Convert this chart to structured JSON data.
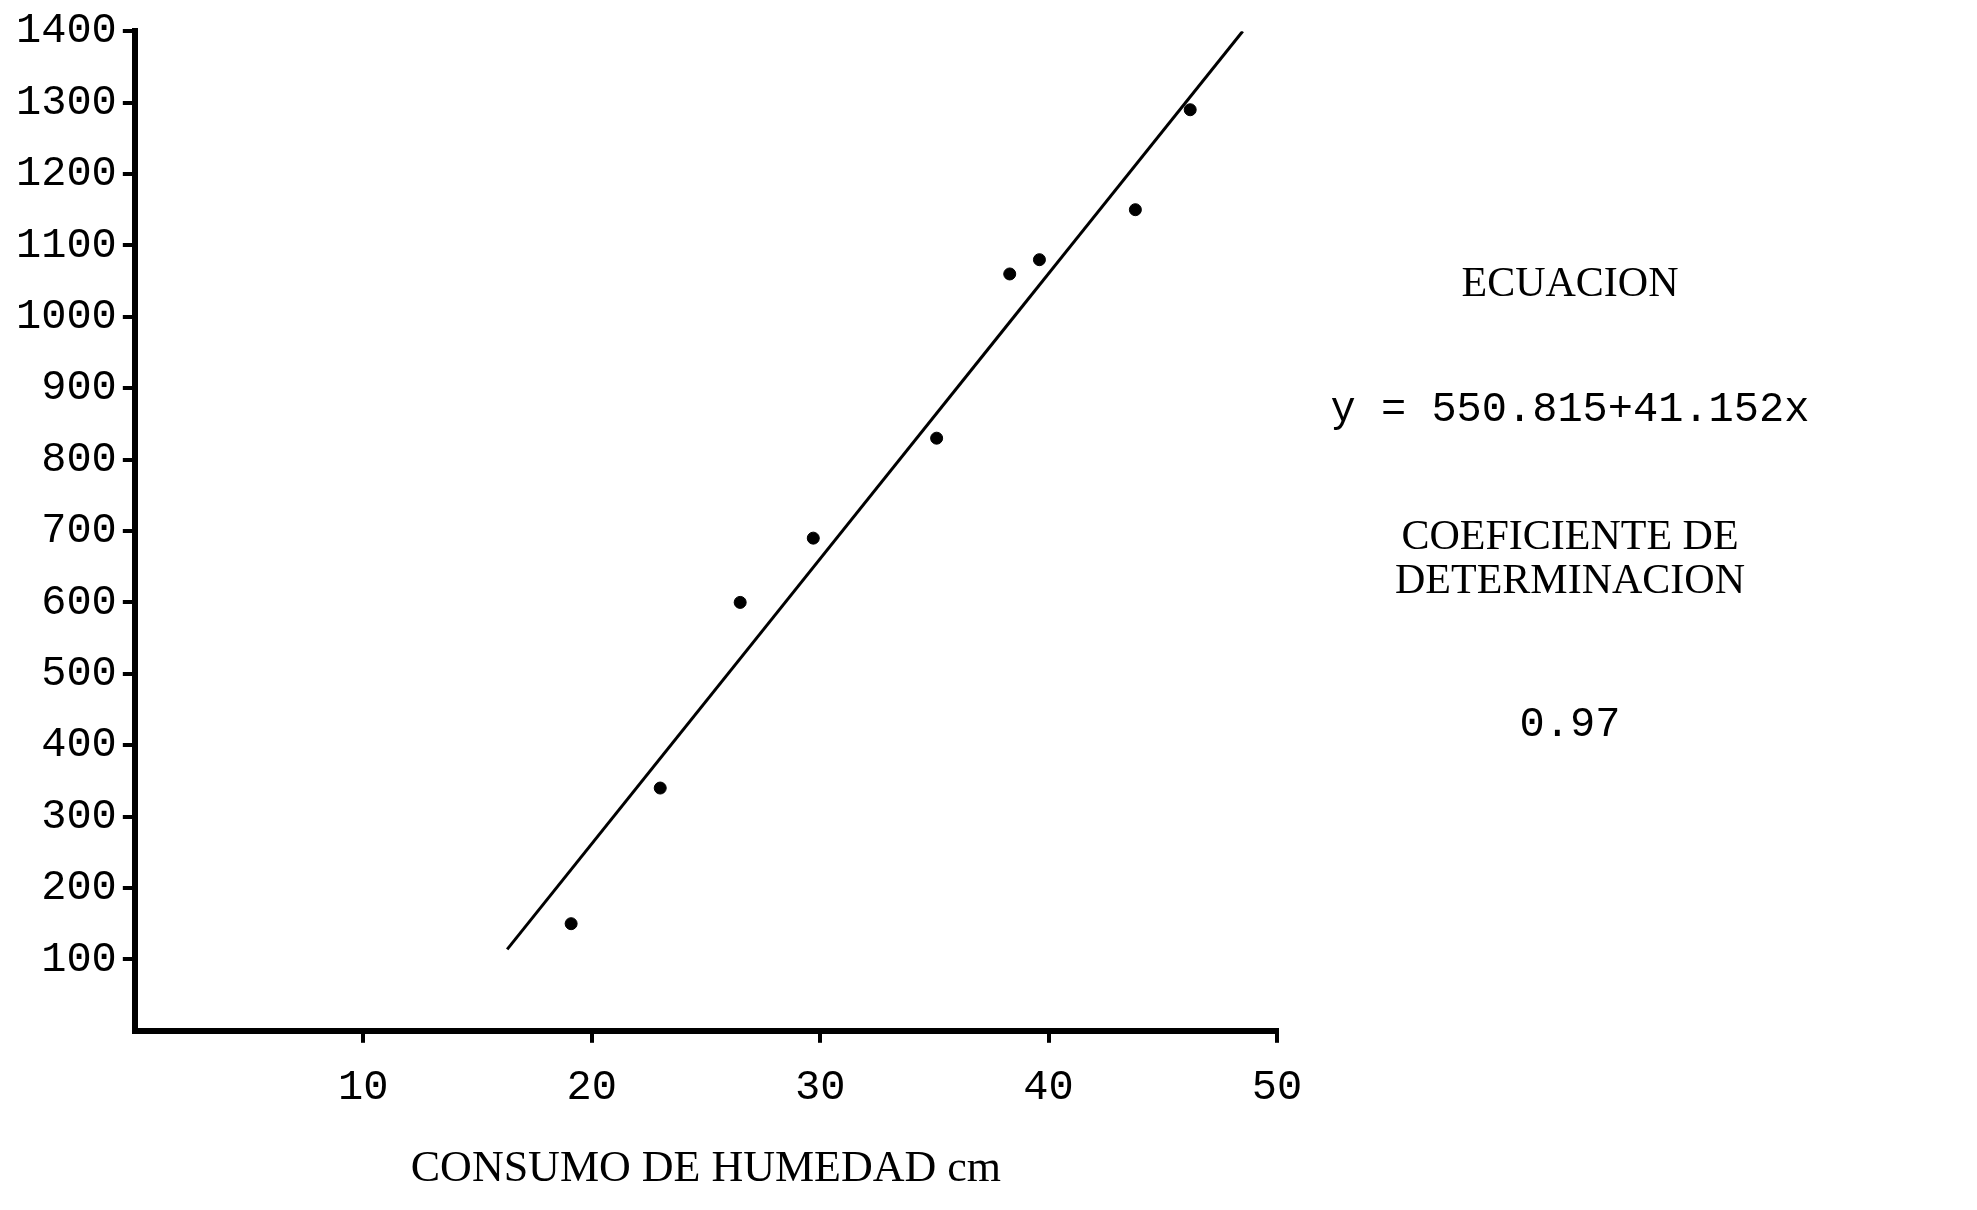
{
  "chart_data": {
    "type": "scatter",
    "xlabel": "CONSUMO DE HUMEDAD cm",
    "x": [
      19.1,
      23.0,
      26.5,
      29.7,
      35.1,
      38.3,
      39.6,
      43.8,
      46.2
    ],
    "values": [
      150,
      340,
      600,
      690,
      830,
      1060,
      1080,
      1150,
      1290
    ],
    "color": "#000000",
    "marker": "circle",
    "series": [
      {
        "type": "line",
        "x": [
          16.3,
          48.5
        ],
        "values": [
          114,
          1400
        ],
        "color": "#000000",
        "marker": "none"
      }
    ],
    "xlim": [
      0,
      50
    ],
    "xticks": [
      10,
      20,
      30,
      40,
      50
    ],
    "ylim": [
      0,
      1400
    ],
    "yticks": [
      100,
      200,
      300,
      400,
      500,
      600,
      700,
      800,
      900,
      1000,
      1100,
      1200,
      1300,
      1400
    ],
    "grid": false,
    "legend": false,
    "annotations": [
      "ECUACION",
      "y = 550.815+41.152x",
      "COEFICIENTE DE DETERMINACION",
      "0.97"
    ]
  }
}
